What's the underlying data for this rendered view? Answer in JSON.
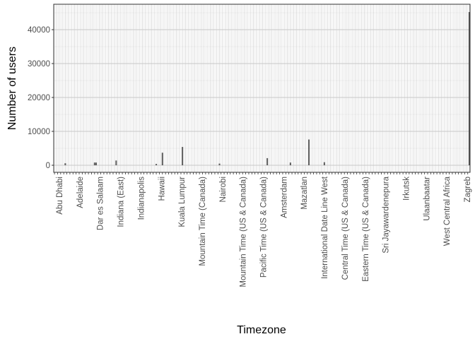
{
  "chart_data": {
    "type": "bar",
    "xlabel": "Timezone",
    "ylabel": "Number of users",
    "ylim": [
      0,
      47500
    ],
    "yticks": [
      0,
      10000,
      20000,
      30000,
      40000
    ],
    "ytick_labels": [
      "0",
      "10000",
      "20000",
      "30000",
      "40000"
    ],
    "grid": true,
    "legend": "none",
    "category_count": 146,
    "visible_category_labels": [
      "Abu Dhabi",
      "Adelaide",
      "Dar es Salaam",
      "Indiana (East)",
      "Indianapolis",
      "Hawaii",
      "Kuala Lumpur",
      "Mountain Time (Canada)",
      "Nairobi",
      "Mountain Time (US & Canada)",
      "Pacific Time (US & Canada)",
      "Amsterdam",
      "Mazatlan",
      "International Date Line West",
      "Central Time (US & Canada)",
      "Eastern Time (US & Canada)",
      "Sri Jayawardenepura",
      "Irkutsk",
      "Ulaanbaatar",
      "West Central Africa",
      "Zagreb"
    ],
    "bars": [
      {
        "index": 7,
        "value": 600
      },
      {
        "index": 26,
        "value": 800
      },
      {
        "index": 27,
        "value": 800
      },
      {
        "index": 40,
        "value": 1400
      },
      {
        "index": 66,
        "value": 400
      },
      {
        "index": 70,
        "value": 3700
      },
      {
        "index": 83,
        "value": 5400
      },
      {
        "index": 107,
        "value": 500
      },
      {
        "index": 138,
        "value": 2100
      },
      {
        "index": 153,
        "value": 800
      },
      {
        "index": 165,
        "value": 7600
      },
      {
        "index": 175,
        "value": 900
      },
      {
        "index": 269,
        "value": 45200
      }
    ],
    "total_slots": 270
  }
}
